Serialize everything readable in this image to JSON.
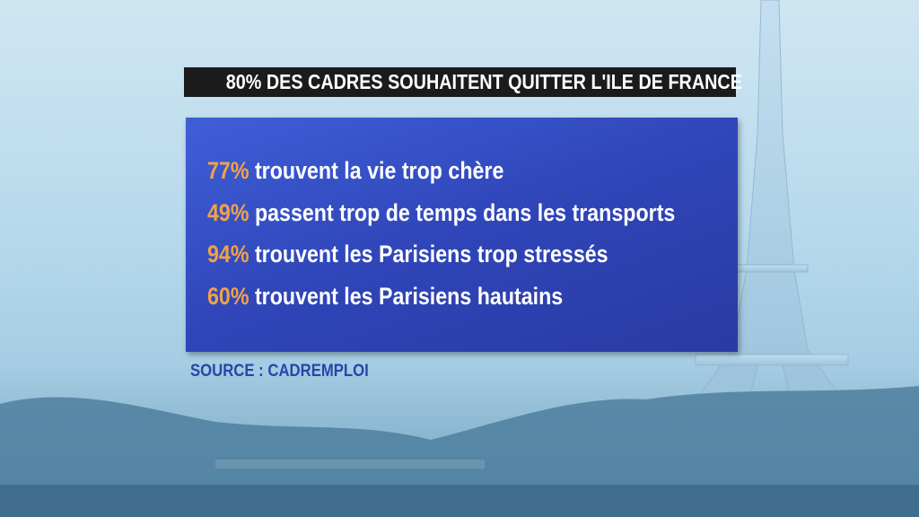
{
  "header": {
    "title": "80% DES CADRES SOUHAITENT QUITTER L'ILE DE FRANCE"
  },
  "items": [
    {
      "percent": "77%",
      "text": "trouvent la vie trop chère"
    },
    {
      "percent": "49%",
      "text": "passent trop de temps dans les transports"
    },
    {
      "percent": "94%",
      "text": "trouvent les Parisiens trop stressés"
    },
    {
      "percent": "60%",
      "text": "trouvent les Parisiens hautains"
    }
  ],
  "source": "SOURCE : CADREMPLOI"
}
